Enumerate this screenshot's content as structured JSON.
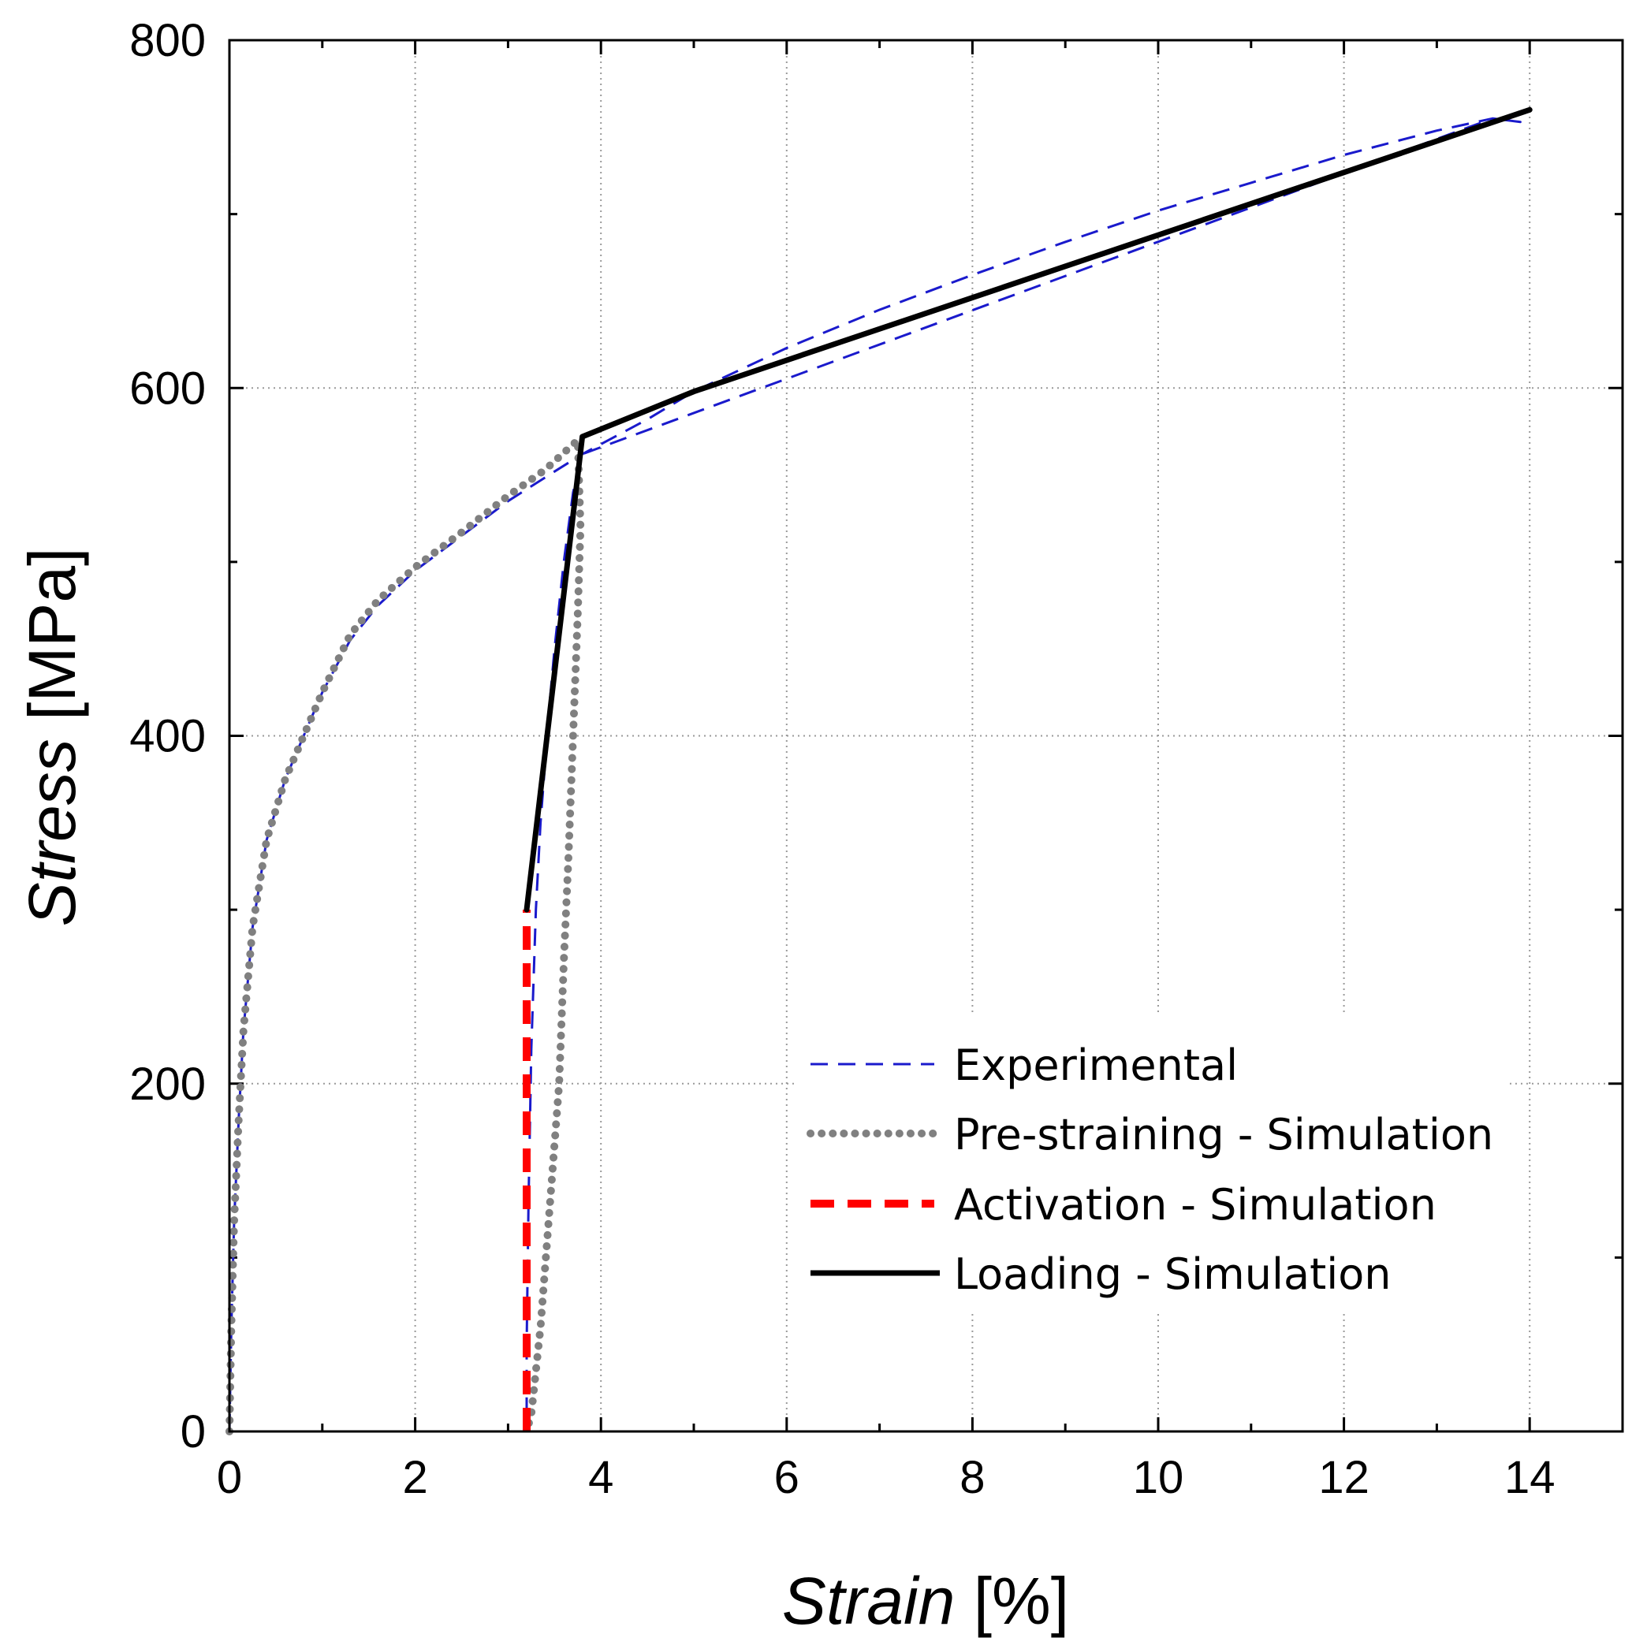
{
  "chart_data": {
    "type": "line",
    "title": "",
    "xlabel": {
      "italic": "Strain",
      "unit": " [%]"
    },
    "ylabel": {
      "italic": "Stress",
      "unit": " [MPa]"
    },
    "xlim": [
      0,
      15
    ],
    "ylim": [
      0,
      800
    ],
    "x_ticks": [
      0,
      2,
      4,
      6,
      8,
      10,
      12,
      14
    ],
    "y_ticks": [
      0,
      200,
      400,
      600,
      800
    ],
    "grid": true,
    "legend_position": "bottom-right",
    "series": [
      {
        "name": "Experimental",
        "color": "#1a1acc",
        "style": "dashed",
        "points": [
          [
            0,
            0
          ],
          [
            0.02,
            60
          ],
          [
            0.05,
            120
          ],
          [
            0.1,
            180
          ],
          [
            0.15,
            230
          ],
          [
            0.25,
            290
          ],
          [
            0.4,
            340
          ],
          [
            0.6,
            375
          ],
          [
            0.8,
            400
          ],
          [
            1.0,
            425
          ],
          [
            1.3,
            455
          ],
          [
            1.6,
            475
          ],
          [
            2.0,
            495
          ],
          [
            2.5,
            515
          ],
          [
            3.0,
            535
          ],
          [
            3.5,
            552
          ],
          [
            3.8,
            562
          ],
          [
            4.5,
            582
          ],
          [
            5.0,
            598
          ],
          [
            6.0,
            623
          ],
          [
            7.0,
            645
          ],
          [
            8.0,
            665
          ],
          [
            9.0,
            684
          ],
          [
            10.0,
            702
          ],
          [
            11.0,
            718
          ],
          [
            12.0,
            734
          ],
          [
            13.0,
            748
          ],
          [
            13.6,
            755
          ],
          [
            13.9,
            753
          ],
          [
            13.6,
            755
          ],
          [
            3.8,
            562
          ],
          [
            3.7,
            540
          ],
          [
            3.6,
            500
          ],
          [
            3.5,
            450
          ],
          [
            3.45,
            420
          ],
          [
            3.4,
            385
          ],
          [
            3.35,
            350
          ],
          [
            3.3,
            300
          ],
          [
            3.25,
            220
          ],
          [
            3.22,
            130
          ],
          [
            3.2,
            50
          ],
          [
            3.2,
            0
          ]
        ]
      },
      {
        "name": "Pre-straining - Simulation",
        "color": "#808080",
        "style": "dotted",
        "points": [
          [
            0,
            0
          ],
          [
            0.02,
            60
          ],
          [
            0.05,
            120
          ],
          [
            0.1,
            180
          ],
          [
            0.15,
            230
          ],
          [
            0.25,
            290
          ],
          [
            0.4,
            340
          ],
          [
            0.6,
            375
          ],
          [
            0.8,
            400
          ],
          [
            1.0,
            425
          ],
          [
            1.3,
            458
          ],
          [
            1.6,
            478
          ],
          [
            2.0,
            497
          ],
          [
            2.5,
            517
          ],
          [
            3.0,
            538
          ],
          [
            3.4,
            553
          ],
          [
            3.75,
            570
          ],
          [
            3.78,
            520
          ],
          [
            3.75,
            470
          ],
          [
            3.7,
            400
          ],
          [
            3.65,
            330
          ],
          [
            3.6,
            270
          ],
          [
            3.55,
            200
          ],
          [
            3.45,
            130
          ],
          [
            3.35,
            60
          ],
          [
            3.25,
            10
          ],
          [
            3.2,
            0
          ]
        ]
      },
      {
        "name": "Activation - Simulation",
        "color": "#ff0000",
        "style": "thick-dashed",
        "points": [
          [
            3.2,
            0
          ],
          [
            3.2,
            300
          ]
        ]
      },
      {
        "name": "Loading - Simulation",
        "color": "#000000",
        "style": "solid",
        "points": [
          [
            3.2,
            300
          ],
          [
            3.8,
            572
          ],
          [
            5.0,
            598
          ],
          [
            14.0,
            760
          ]
        ]
      }
    ]
  }
}
